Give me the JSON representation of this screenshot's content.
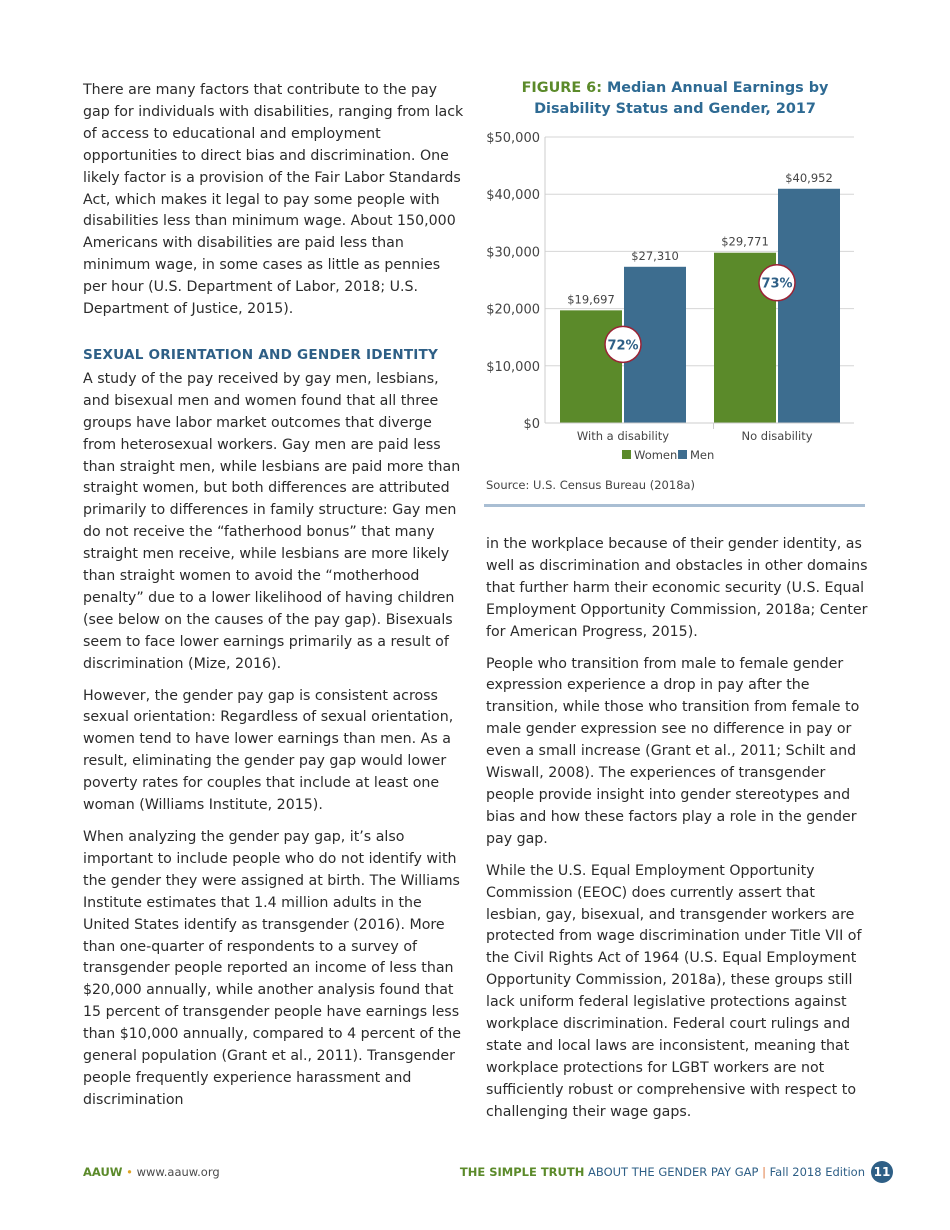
{
  "left_column": {
    "paragraphs_before": [
      "There are many factors that contribute to the pay gap for individuals with disabilities, ranging from lack of access to educational and employment opportunities to direct bias and discrimination. One likely factor is a provision of the Fair Labor Standards Act, which makes it legal to pay some people with disabilities less than minimum wage. About 150,000 Americans with disabilities are paid less than minimum wage, in some cases as little as pennies per hour (U.S. Department of Labor, 2018; U.S. Department of Justice, 2015)."
    ],
    "heading": "SEXUAL ORIENTATION AND GENDER IDENTITY",
    "paragraphs": [
      "A study of the pay received by gay men, lesbians, and bisexual men and women found that all three groups have labor market outcomes that diverge from heterosexual workers. Gay men are paid less than straight men, while lesbians are paid more than straight women, but both differences are attributed primarily to differences in family structure: Gay men do not receive the “fatherhood bonus” that many straight men receive, while lesbians are more likely than straight women to avoid the “motherhood penalty” due to a lower likelihood of having children (see below on the causes of the pay gap). Bisexuals seem to face lower earnings primarily as a result of discrimination (Mize, 2016).",
      "However, the gender pay gap is consistent across sexual orientation: Regardless of sexual orientation, women tend to have lower earnings than men. As a result, eliminating the gender pay gap would lower poverty rates for couples that include at least one woman (Williams Institute, 2015).",
      "When analyzing the gender pay gap, it’s also important to include people who do not identify with the gender they were assigned at birth. The Williams Institute estimates that 1.4 million adults in the United States identify as transgender (2016). More than one-quarter of respondents to a survey of transgender people reported an income of less than $20,000 annually, while another analysis found that 15 percent of transgender people have earnings less than $10,000 annually, compared to 4 percent of the general population (Grant et al., 2011). Transgender people frequently experience harassment and discrimination"
    ]
  },
  "right_column": {
    "paragraphs": [
      "in the workplace because of their gender identity, as well as discrimination and obstacles in other domains that further harm their economic security (U.S. Equal Employment Opportunity Commission, 2018a; Center for American Progress, 2015).",
      "People who transition from male to female gender expression experience a drop in pay after the transition, while those who transition from female to male gender expression see no difference in pay or even a small increase (Grant et al., 2011; Schilt and Wiswall, 2008). The experiences of transgender people provide insight into gender stereotypes and bias and how these factors play a role in the gender pay gap.",
      "While the U.S. Equal Employment Opportunity Commission (EEOC) does currently assert that lesbian, gay, bisexual, and transgender workers are protected from wage discrimination under Title VII of the Civil Rights Act of 1964 (U.S. Equal Employment Opportunity Commission, 2018a), these groups still lack uniform federal legislative protections against workplace discrimination. Federal court rulings and state and local laws are inconsistent, meaning that workplace protections for LGBT workers are not sufficiently robust or comprehensive with respect to challenging their wage gaps."
    ]
  },
  "figure": {
    "number": "FIGURE 6:",
    "title": "Median Annual Earnings by Disability Status and Gender, 2017",
    "source": "Source: U.S. Census Bureau (2018a)"
  },
  "chart_data": {
    "type": "bar",
    "title": "Median Annual Earnings by Disability Status and Gender, 2017",
    "categories": [
      "With a disability",
      "No disability"
    ],
    "series": [
      {
        "name": "Women",
        "values": [
          19697,
          29771
        ],
        "labels": [
          "$19,697",
          "$29,771"
        ],
        "color": "#5b8a2a"
      },
      {
        "name": "Men",
        "values": [
          27310,
          40952
        ],
        "labels": [
          "$27,310",
          "$40,952"
        ],
        "color": "#3d6d8f"
      }
    ],
    "ratios": [
      "72%",
      "73%"
    ],
    "ylim": [
      0,
      50000
    ],
    "yticks": [
      0,
      10000,
      20000,
      30000,
      40000,
      50000
    ],
    "ytick_labels": [
      "$0",
      "$10,000",
      "$20,000",
      "$30,000",
      "$40,000",
      "$50,000"
    ],
    "grid": true,
    "legend": "bottom"
  },
  "footer": {
    "org": "AAUW",
    "separator": "•",
    "url": "www.aauw.org",
    "title_strong": "THE SIMPLE TRUTH",
    "title_rest": "ABOUT THE GENDER PAY GAP",
    "divider": "|",
    "edition": "Fall 2018 Edition",
    "page_number": "11"
  }
}
